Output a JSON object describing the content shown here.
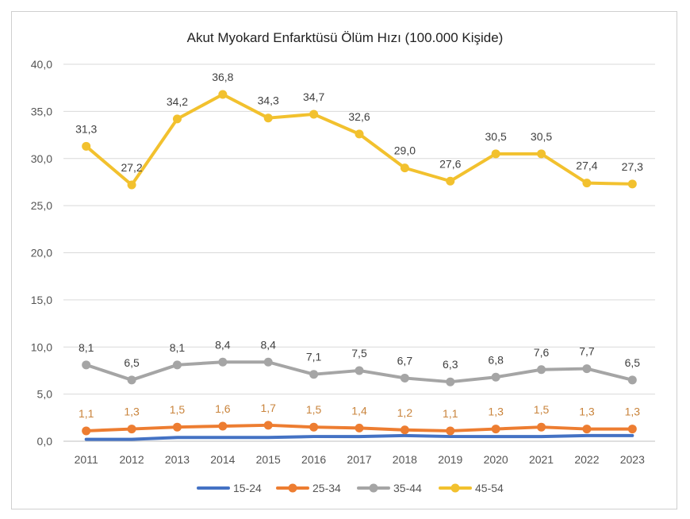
{
  "chart_data": {
    "type": "line",
    "title": "Akut Myokard Enfarktüsü Ölüm Hızı (100.000 Kişide)",
    "xlabel": "",
    "ylabel": "",
    "ylim": [
      0,
      40
    ],
    "grid": true,
    "legend_position": "bottom",
    "y_ticks": [
      "0,0",
      "5,0",
      "10,0",
      "15,0",
      "20,0",
      "25,0",
      "30,0",
      "35,0",
      "40,0"
    ],
    "categories": [
      "2011",
      "2012",
      "2013",
      "2014",
      "2015",
      "2016",
      "2017",
      "2018",
      "2019",
      "2020",
      "2021",
      "2022",
      "2023"
    ],
    "series": [
      {
        "name": "15-24",
        "color": "#4472C4",
        "markers": false,
        "show_labels": false,
        "values": [
          0.2,
          0.2,
          0.4,
          0.4,
          0.4,
          0.5,
          0.5,
          0.6,
          0.5,
          0.5,
          0.5,
          0.6,
          0.6
        ],
        "labels": []
      },
      {
        "name": "25-34",
        "color": "#ED7D31",
        "markers": true,
        "show_labels": true,
        "values": [
          1.1,
          1.3,
          1.5,
          1.6,
          1.7,
          1.5,
          1.4,
          1.2,
          1.1,
          1.3,
          1.5,
          1.3,
          1.3
        ],
        "labels": [
          "1,1",
          "1,3",
          "1,5",
          "1,6",
          "1,7",
          "1,5",
          "1,4",
          "1,2",
          "1,1",
          "1,3",
          "1,5",
          "1,3",
          "1,3"
        ]
      },
      {
        "name": "35-44",
        "color": "#A5A5A5",
        "markers": true,
        "show_labels": true,
        "values": [
          8.1,
          6.5,
          8.1,
          8.4,
          8.4,
          7.1,
          7.5,
          6.7,
          6.3,
          6.8,
          7.6,
          7.7,
          6.5
        ],
        "labels": [
          "8,1",
          "6,5",
          "8,1",
          "8,4",
          "8,4",
          "7,1",
          "7,5",
          "6,7",
          "6,3",
          "6,8",
          "7,6",
          "7,7",
          "6,5"
        ]
      },
      {
        "name": "45-54",
        "color": "#F2C12E",
        "markers": true,
        "show_labels": true,
        "values": [
          31.3,
          27.2,
          34.2,
          36.8,
          34.3,
          34.7,
          32.6,
          29.0,
          27.6,
          30.5,
          30.5,
          27.4,
          27.3
        ],
        "labels": [
          "31,3",
          "27,2",
          "34,2",
          "36,8",
          "34,3",
          "34,7",
          "32,6",
          "29,0",
          "27,6",
          "30,5",
          "30,5",
          "27,4",
          "27,3"
        ]
      }
    ]
  },
  "colors": {
    "grid": "#d9d9d9",
    "label_dark": "#404040",
    "label_orange": "#C9843C"
  }
}
